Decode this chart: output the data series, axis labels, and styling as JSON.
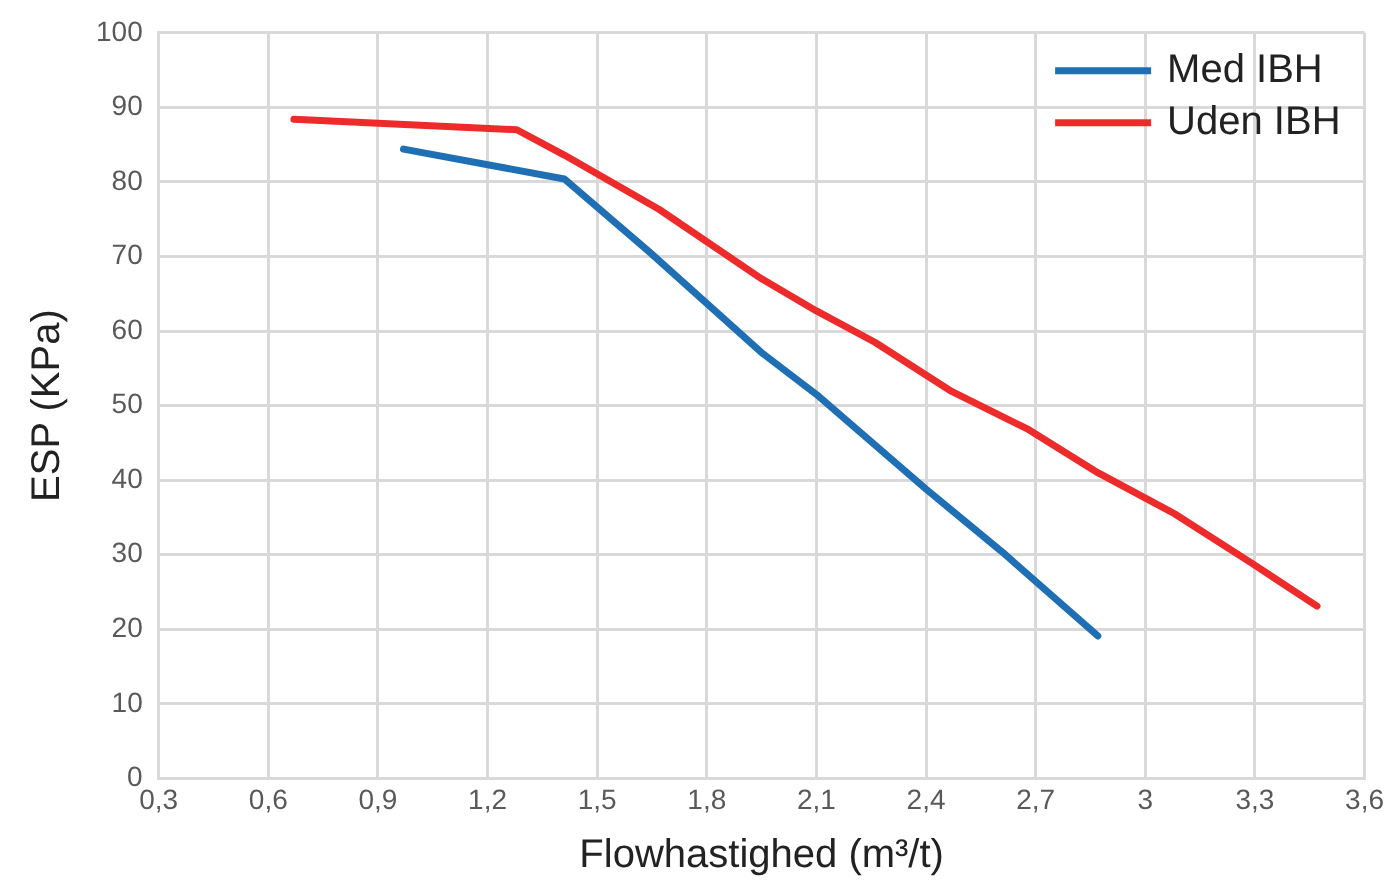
{
  "chart_data": {
    "type": "line",
    "xlabel": "Flowhastighed (m³/t)",
    "ylabel": "ESP (KPa)",
    "xlim": [
      0.3,
      3.6
    ],
    "xticks": [
      {
        "value": 0.3,
        "label": "0,3"
      },
      {
        "value": 0.6,
        "label": "0,6"
      },
      {
        "value": 0.9,
        "label": "0,9"
      },
      {
        "value": 1.2,
        "label": "1,2"
      },
      {
        "value": 1.5,
        "label": "1,5"
      },
      {
        "value": 1.8,
        "label": "1,8"
      },
      {
        "value": 2.1,
        "label": "2,1"
      },
      {
        "value": 2.4,
        "label": "2,4"
      },
      {
        "value": 2.7,
        "label": "2,7"
      },
      {
        "value": 3,
        "label": "3"
      },
      {
        "value": 3.3,
        "label": "3,3"
      },
      {
        "value": 3.6,
        "label": "3,6"
      }
    ],
    "ylim": [
      0,
      100
    ],
    "yticks": [
      0,
      10,
      20,
      30,
      40,
      50,
      60,
      70,
      80,
      90,
      100
    ],
    "grid": true,
    "legend": "top right",
    "marker": "none",
    "line_style": "solid",
    "series": [
      {
        "name": "Med IBH",
        "color": "#1f6fb5",
        "x": [
          0.97,
          1.41,
          1.65,
          1.95,
          2.1,
          2.4,
          2.61,
          2.87
        ],
        "values": [
          84.4,
          80.4,
          70.3,
          57.1,
          51.5,
          38.8,
          30.3,
          19.1
        ]
      },
      {
        "name": "Uden IBH",
        "color": "#ee2b2b",
        "x": [
          0.67,
          1.28,
          1.41,
          1.67,
          1.95,
          2.1,
          2.26,
          2.47,
          2.68,
          2.87,
          3.08,
          3.29,
          3.47
        ],
        "values": [
          88.4,
          87.0,
          83.6,
          76.3,
          67.0,
          62.7,
          58.5,
          51.9,
          46.8,
          41.0,
          35.5,
          28.9,
          23.1
        ]
      }
    ]
  }
}
